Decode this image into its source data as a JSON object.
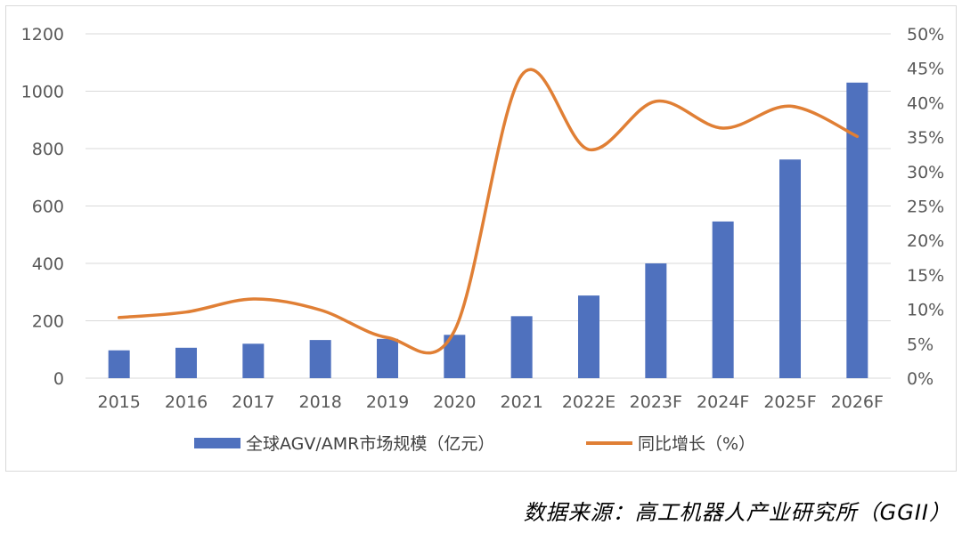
{
  "chart_data": {
    "type": "bar",
    "categories": [
      "2015",
      "2016",
      "2017",
      "2018",
      "2019",
      "2020",
      "2021",
      "2022E",
      "2023F",
      "2024F",
      "2025F",
      "2026F"
    ],
    "series": [
      {
        "name": "全球AGV/AMR市场规模（亿元）",
        "type": "bar",
        "axis": "left",
        "color": "#4f71be",
        "values": [
          97,
          106,
          120,
          133,
          137,
          151,
          216,
          288,
          400,
          546,
          762,
          1030
        ]
      },
      {
        "name": "同比增长（%）",
        "type": "line",
        "axis": "right",
        "color": "#e07f35",
        "values": [
          8.8,
          9.6,
          11.5,
          9.9,
          5.9,
          6.9,
          44,
          33.2,
          40.2,
          36.3,
          39.5,
          35.1
        ]
      }
    ],
    "y_left": {
      "ylim": [
        0,
        1200
      ],
      "ticks": [
        "0",
        "200",
        "400",
        "600",
        "800",
        "1000",
        "1200"
      ]
    },
    "y_right": {
      "ylim": [
        0,
        50
      ],
      "ticks": [
        "0%",
        "5%",
        "10%",
        "15%",
        "20%",
        "25%",
        "30%",
        "35%",
        "40%",
        "45%",
        "50%"
      ]
    },
    "grid": true,
    "legend_position": "bottom"
  },
  "source_note": "数据来源：高工机器人产业研究所（GGII）"
}
